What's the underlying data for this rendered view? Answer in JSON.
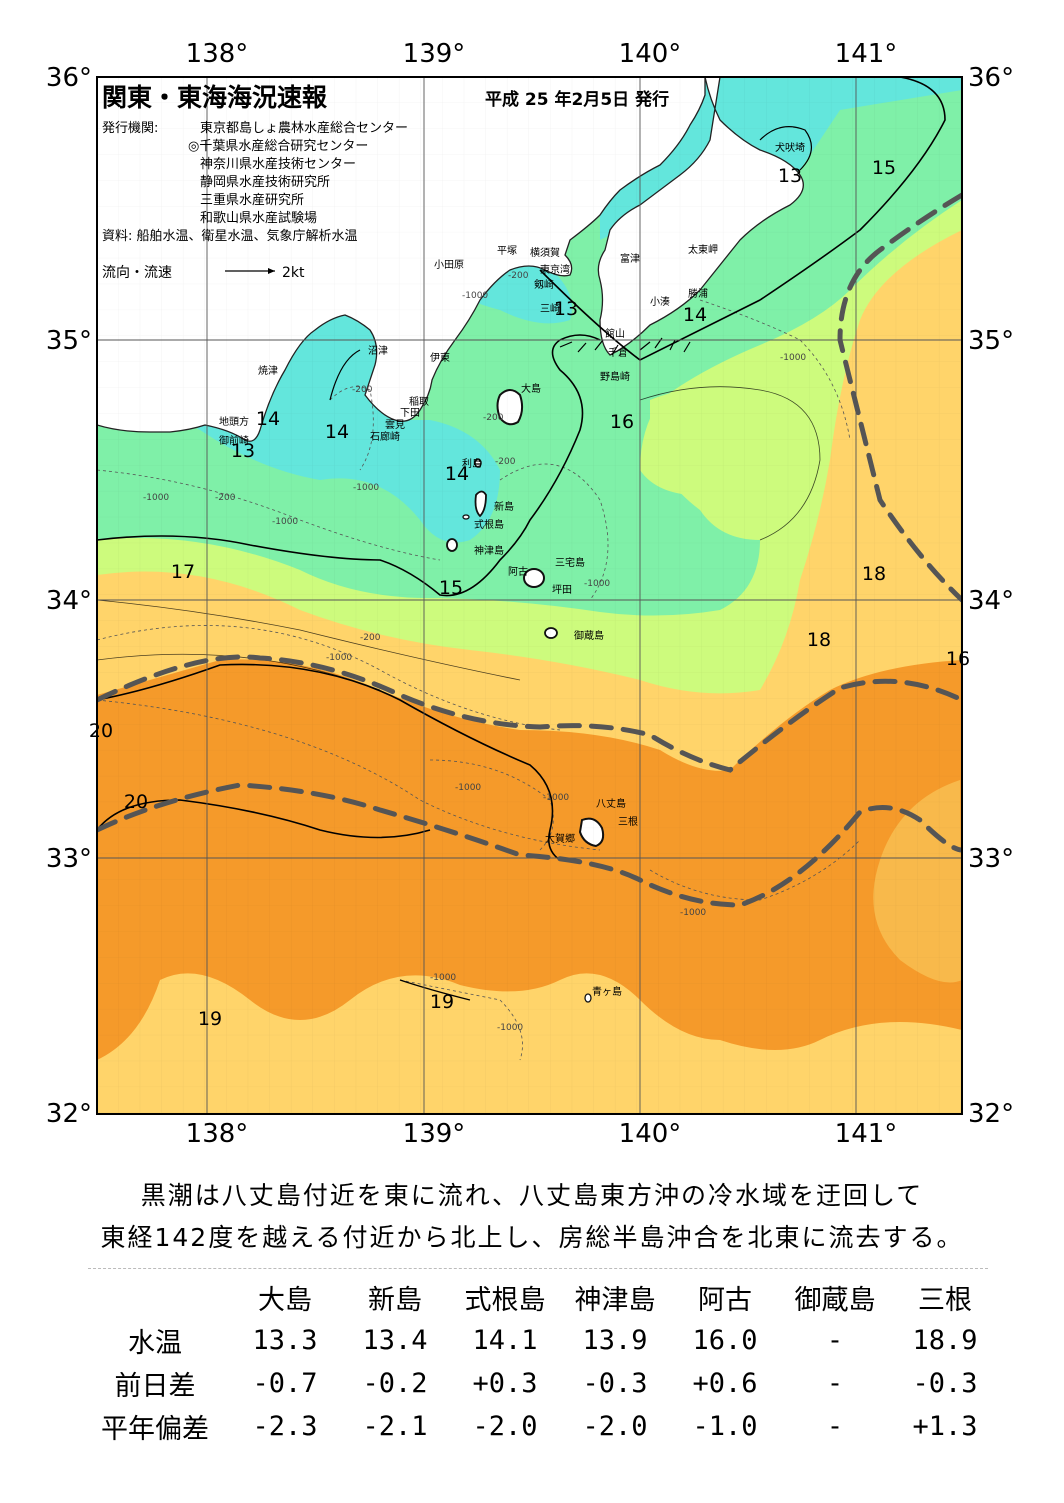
{
  "header": {
    "title": "関東・東海海況速報",
    "issue_date": "平成 25 年2月5日 発行",
    "issuer_label": "発行機関:",
    "issuers": [
      "東京都島しょ農林水産総合センター",
      "◎千葉県水産総合研究センター",
      "神奈川県水産技術センター",
      "静岡県水産技術研究所",
      "三重県水産研究所",
      "和歌山県水産試験場"
    ],
    "source": "資料: 船舶水温、衛星水温、気象庁解析水温",
    "flow_legend": "流向・流速",
    "flow_scale": "2kt"
  },
  "axes": {
    "lon_labels": [
      "138°",
      "139°",
      "140°",
      "141°"
    ],
    "lat_labels": [
      "36°",
      "35°",
      "34°",
      "33°",
      "32°"
    ]
  },
  "colors": {
    "cold": "#63e6dc",
    "cool": "#7ff0a8",
    "mild": "#cdfb7d",
    "warm_light": "#ffd46a",
    "warm": "#f8b94b",
    "kuroshio": "#f59a2a",
    "land": "#ffffff",
    "axis_line": "#555555"
  },
  "places": [
    "犬吠埼",
    "太東岬",
    "勝浦",
    "小湊",
    "富津",
    "館山",
    "千倉",
    "野島崎",
    "横須賀",
    "東京湾",
    "剱崎",
    "三崎",
    "平塚",
    "小田原",
    "沼津",
    "伊東",
    "稲取",
    "下田",
    "雲見",
    "石廊崎",
    "焼津",
    "地頭方",
    "御前崎",
    "大島",
    "利島",
    "新島",
    "式根島",
    "神津島",
    "三宅島",
    "阿古",
    "坪田",
    "御蔵島",
    "八丈島",
    "三根",
    "大賀郷",
    "青ヶ島"
  ],
  "isotherms": [
    "15",
    "13",
    "14",
    "13",
    "14",
    "14",
    "13",
    "16",
    "14",
    "15",
    "17",
    "18",
    "18",
    "16",
    "20",
    "20",
    "19",
    "19"
  ],
  "depth_labels": [
    "-200",
    "-1000",
    "-200",
    "-1000",
    "-200",
    "-1000",
    "-200",
    "-1000",
    "-200",
    "-1000",
    "-1000",
    "-200",
    "-1000",
    "-1000",
    "-1000",
    "-1000",
    "-1000",
    "-1000"
  ],
  "summary": {
    "line1": "黒潮は八丈島付近を東に流れ、八丈島東方沖の冷水域を迂回して",
    "line2": "東経142度を越える付近から北上し、房総半島沖合を北東に流去する。"
  },
  "observations": {
    "stations": [
      "大島",
      "新島",
      "式根島",
      "神津島",
      "阿古",
      "御蔵島",
      "三根"
    ],
    "rows": [
      {
        "label": "水温",
        "values": [
          "13.3",
          "13.4",
          "14.1",
          "13.9",
          "16.0",
          "-",
          "18.9"
        ]
      },
      {
        "label": "前日差",
        "values": [
          "-0.7",
          "-0.2",
          "+0.3",
          "-0.3",
          "+0.6",
          "-",
          "-0.3"
        ]
      },
      {
        "label": "平年偏差",
        "values": [
          "-2.3",
          "-2.1",
          "-2.0",
          "-2.0",
          "-1.0",
          "-",
          "+1.3"
        ]
      }
    ]
  }
}
